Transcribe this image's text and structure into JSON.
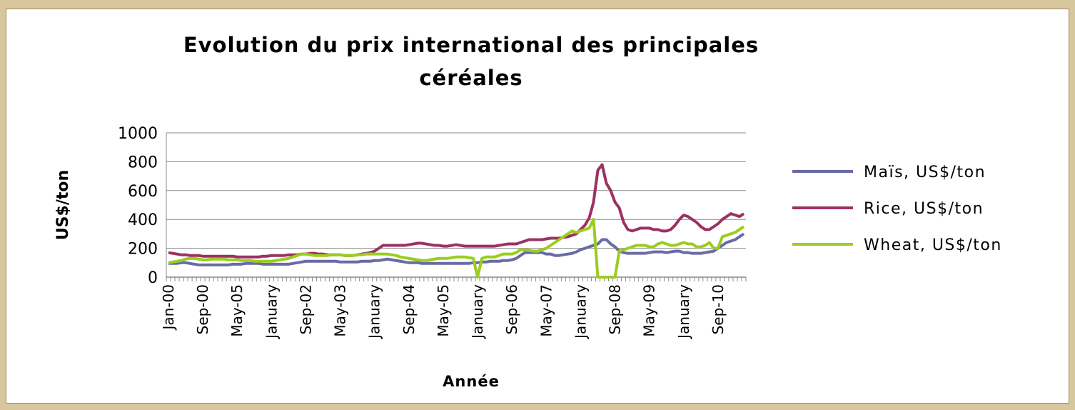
{
  "chart_data": {
    "type": "line",
    "title": "Evolution du prix international des principales céréales",
    "xlabel": "Année",
    "ylabel": "US$/ton",
    "categories": [
      "Jan-00",
      null,
      null,
      null,
      null,
      null,
      null,
      null,
      "Sep-00",
      null,
      null,
      null,
      null,
      null,
      null,
      null,
      "May-05",
      null,
      null,
      null,
      null,
      null,
      null,
      null,
      "January",
      null,
      null,
      null,
      null,
      null,
      null,
      null,
      "Sep-02",
      null,
      null,
      null,
      null,
      null,
      null,
      null,
      "May-03",
      null,
      null,
      null,
      null,
      null,
      null,
      null,
      "January",
      null,
      null,
      null,
      null,
      null,
      null,
      null,
      "Sep-04",
      null,
      null,
      null,
      null,
      null,
      null,
      null,
      "May-05",
      null,
      null,
      null,
      null,
      null,
      null,
      null,
      "January",
      null,
      null,
      null,
      null,
      null,
      null,
      null,
      "Sep-06",
      null,
      null,
      null,
      null,
      null,
      null,
      null,
      "May-07",
      null,
      null,
      null,
      null,
      null,
      null,
      null,
      "January",
      null,
      null,
      null,
      null,
      null,
      null,
      null,
      "Sep-08",
      null,
      null,
      null,
      null,
      null,
      null,
      null,
      "May-09",
      null,
      null,
      null,
      null,
      null,
      null,
      null,
      "January",
      null,
      null,
      null,
      null,
      null,
      null,
      null,
      "Sep-10",
      null,
      null,
      null,
      null,
      null,
      null
    ],
    "series": [
      {
        "name": "Maïs, US$/ton",
        "color": "#6a6aa6",
        "values": [
          95,
          95,
          95,
          100,
          100,
          95,
          90,
          85,
          85,
          85,
          85,
          85,
          85,
          85,
          85,
          90,
          90,
          90,
          95,
          95,
          95,
          95,
          90,
          90,
          90,
          90,
          90,
          90,
          90,
          95,
          100,
          105,
          110,
          110,
          110,
          110,
          110,
          110,
          110,
          110,
          105,
          105,
          105,
          105,
          105,
          110,
          110,
          110,
          115,
          115,
          120,
          125,
          120,
          115,
          110,
          105,
          100,
          100,
          100,
          95,
          95,
          95,
          95,
          95,
          95,
          95,
          95,
          95,
          95,
          95,
          95,
          100,
          100,
          105,
          105,
          110,
          110,
          110,
          115,
          115,
          120,
          130,
          150,
          170,
          170,
          170,
          170,
          170,
          160,
          160,
          150,
          150,
          155,
          160,
          165,
          175,
          190,
          200,
          210,
          220,
          230,
          260,
          260,
          230,
          210,
          180,
          170,
          165,
          165,
          165,
          165,
          165,
          170,
          175,
          175,
          175,
          170,
          175,
          180,
          180,
          170,
          170,
          165,
          165,
          165,
          170,
          175,
          180,
          200,
          220,
          240,
          250,
          260,
          280,
          300
        ]
      },
      {
        "name": "Rice, US$/ton",
        "color": "#9c3163",
        "values": [
          170,
          165,
          160,
          155,
          155,
          150,
          150,
          150,
          145,
          145,
          145,
          145,
          145,
          145,
          145,
          145,
          140,
          140,
          140,
          140,
          140,
          140,
          145,
          145,
          150,
          150,
          150,
          150,
          155,
          155,
          155,
          160,
          160,
          165,
          165,
          160,
          160,
          155,
          155,
          155,
          155,
          150,
          150,
          150,
          155,
          160,
          165,
          170,
          180,
          200,
          220,
          220,
          220,
          220,
          220,
          220,
          225,
          230,
          235,
          235,
          230,
          225,
          220,
          220,
          215,
          215,
          220,
          225,
          220,
          215,
          215,
          215,
          215,
          215,
          215,
          215,
          215,
          220,
          225,
          230,
          230,
          230,
          240,
          250,
          260,
          260,
          260,
          260,
          265,
          270,
          270,
          270,
          275,
          280,
          290,
          300,
          330,
          360,
          410,
          520,
          740,
          780,
          650,
          600,
          520,
          480,
          380,
          330,
          320,
          330,
          340,
          340,
          340,
          330,
          330,
          320,
          320,
          330,
          360,
          400,
          430,
          420,
          400,
          380,
          350,
          330,
          330,
          350,
          370,
          400,
          420,
          440,
          430,
          420,
          440
        ]
      },
      {
        "name": "Wheat, US$/ton",
        "color": "#9acd1f",
        "values": [
          100,
          105,
          110,
          115,
          125,
          130,
          130,
          125,
          120,
          120,
          125,
          125,
          125,
          125,
          120,
          120,
          120,
          115,
          115,
          115,
          110,
          110,
          110,
          110,
          110,
          115,
          120,
          125,
          130,
          140,
          150,
          160,
          160,
          155,
          150,
          150,
          150,
          150,
          155,
          155,
          155,
          150,
          150,
          150,
          155,
          155,
          160,
          160,
          160,
          160,
          160,
          160,
          155,
          150,
          140,
          135,
          130,
          125,
          120,
          115,
          115,
          120,
          125,
          130,
          130,
          130,
          135,
          140,
          140,
          140,
          135,
          130,
          0,
          130,
          140,
          140,
          140,
          150,
          160,
          160,
          160,
          170,
          190,
          190,
          185,
          180,
          180,
          190,
          200,
          220,
          240,
          260,
          280,
          300,
          320,
          310,
          320,
          330,
          340,
          400,
          0,
          0,
          0,
          0,
          0,
          180,
          190,
          200,
          210,
          220,
          220,
          220,
          210,
          210,
          230,
          240,
          230,
          220,
          220,
          230,
          240,
          230,
          230,
          210,
          210,
          220,
          240,
          200,
          200,
          280,
          290,
          300,
          310,
          330,
          350
        ]
      }
    ],
    "ylim": [
      0,
      1000
    ],
    "yticks": [
      0,
      200,
      400,
      600,
      800,
      1000
    ],
    "grid": true,
    "legend": "right"
  }
}
